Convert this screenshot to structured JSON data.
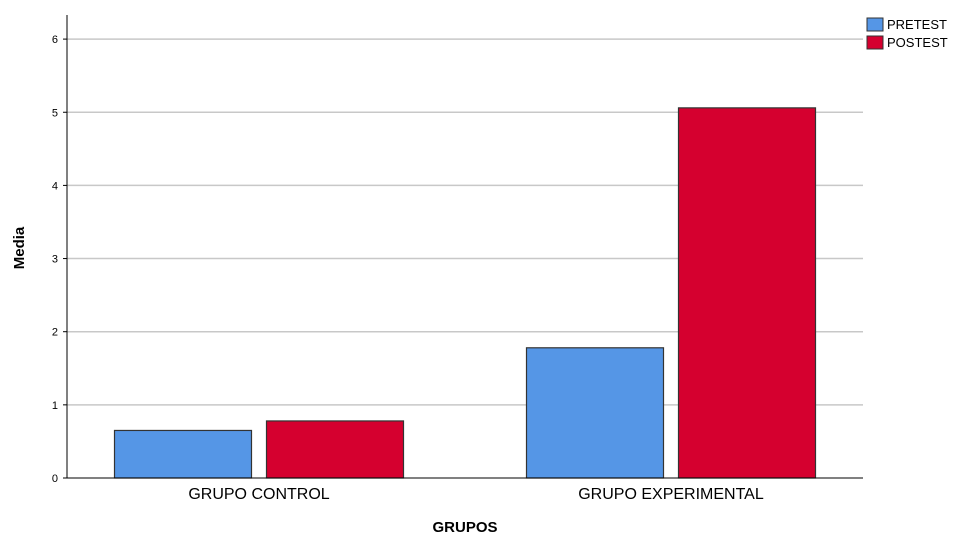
{
  "chart_data": {
    "type": "bar",
    "categories": [
      "GRUPO CONTROL",
      "GRUPO EXPERIMENTAL"
    ],
    "series": [
      {
        "name": "PRETEST",
        "values": [
          0.65,
          1.78
        ],
        "color": "#5596e6"
      },
      {
        "name": "POSTEST",
        "values": [
          0.78,
          5.06
        ],
        "color": "#d5002f"
      }
    ],
    "xlabel": "GRUPOS",
    "ylabel": "Media",
    "yticks": [
      "0",
      "1",
      "2",
      "3",
      "4",
      "5",
      "6"
    ],
    "ylim": [
      0,
      6.3
    ],
    "grid": true,
    "legend_position": "top-right"
  }
}
